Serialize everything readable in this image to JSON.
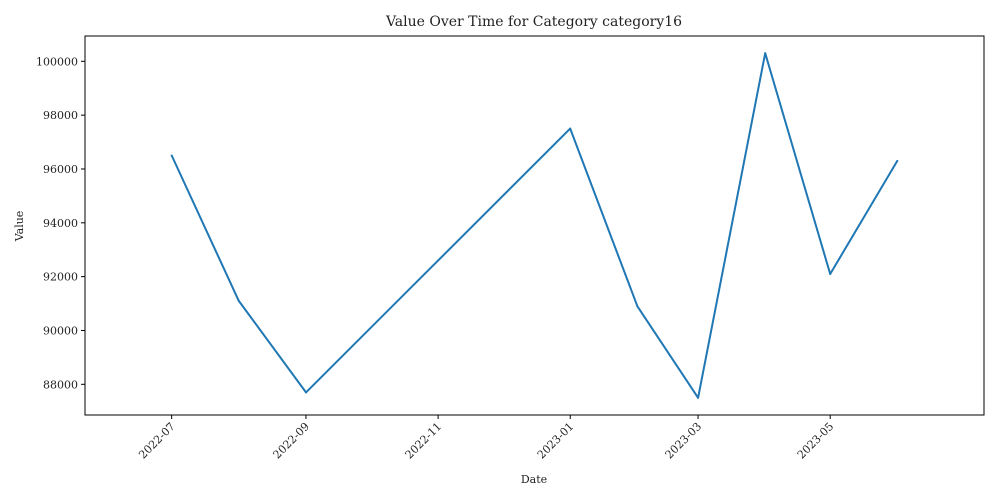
{
  "chart_data": {
    "type": "line",
    "title": "Value Over Time for Category category16",
    "xlabel": "Date",
    "ylabel": "Value",
    "grid": false,
    "series": [
      {
        "color": "#1f77b4",
        "points": [
          {
            "x": "2022-07-01",
            "y": 96500
          },
          {
            "x": "2022-08-01",
            "y": 91100
          },
          {
            "x": "2022-09-01",
            "y": 87700
          },
          {
            "x": "2023-01-01",
            "y": 97500
          },
          {
            "x": "2023-02-01",
            "y": 90900
          },
          {
            "x": "2023-03-01",
            "y": 87500
          },
          {
            "x": "2023-04-01",
            "y": 100300
          },
          {
            "x": "2023-05-01",
            "y": 92100
          },
          {
            "x": "2023-06-01",
            "y": 96300
          }
        ]
      }
    ],
    "x_ticks": [
      {
        "date": "2022-07-01",
        "label": "2022-07"
      },
      {
        "date": "2022-09-01",
        "label": "2022-09"
      },
      {
        "date": "2022-11-01",
        "label": "2022-11"
      },
      {
        "date": "2023-01-01",
        "label": "2023-01"
      },
      {
        "date": "2023-03-01",
        "label": "2023-03"
      },
      {
        "date": "2023-05-01",
        "label": "2023-05"
      }
    ],
    "y_ticks": [
      88000,
      90000,
      92000,
      94000,
      96000,
      98000,
      100000
    ],
    "xlim": [
      "2022-05-22",
      "2023-07-11"
    ],
    "ylim": [
      86860,
      100940
    ]
  }
}
